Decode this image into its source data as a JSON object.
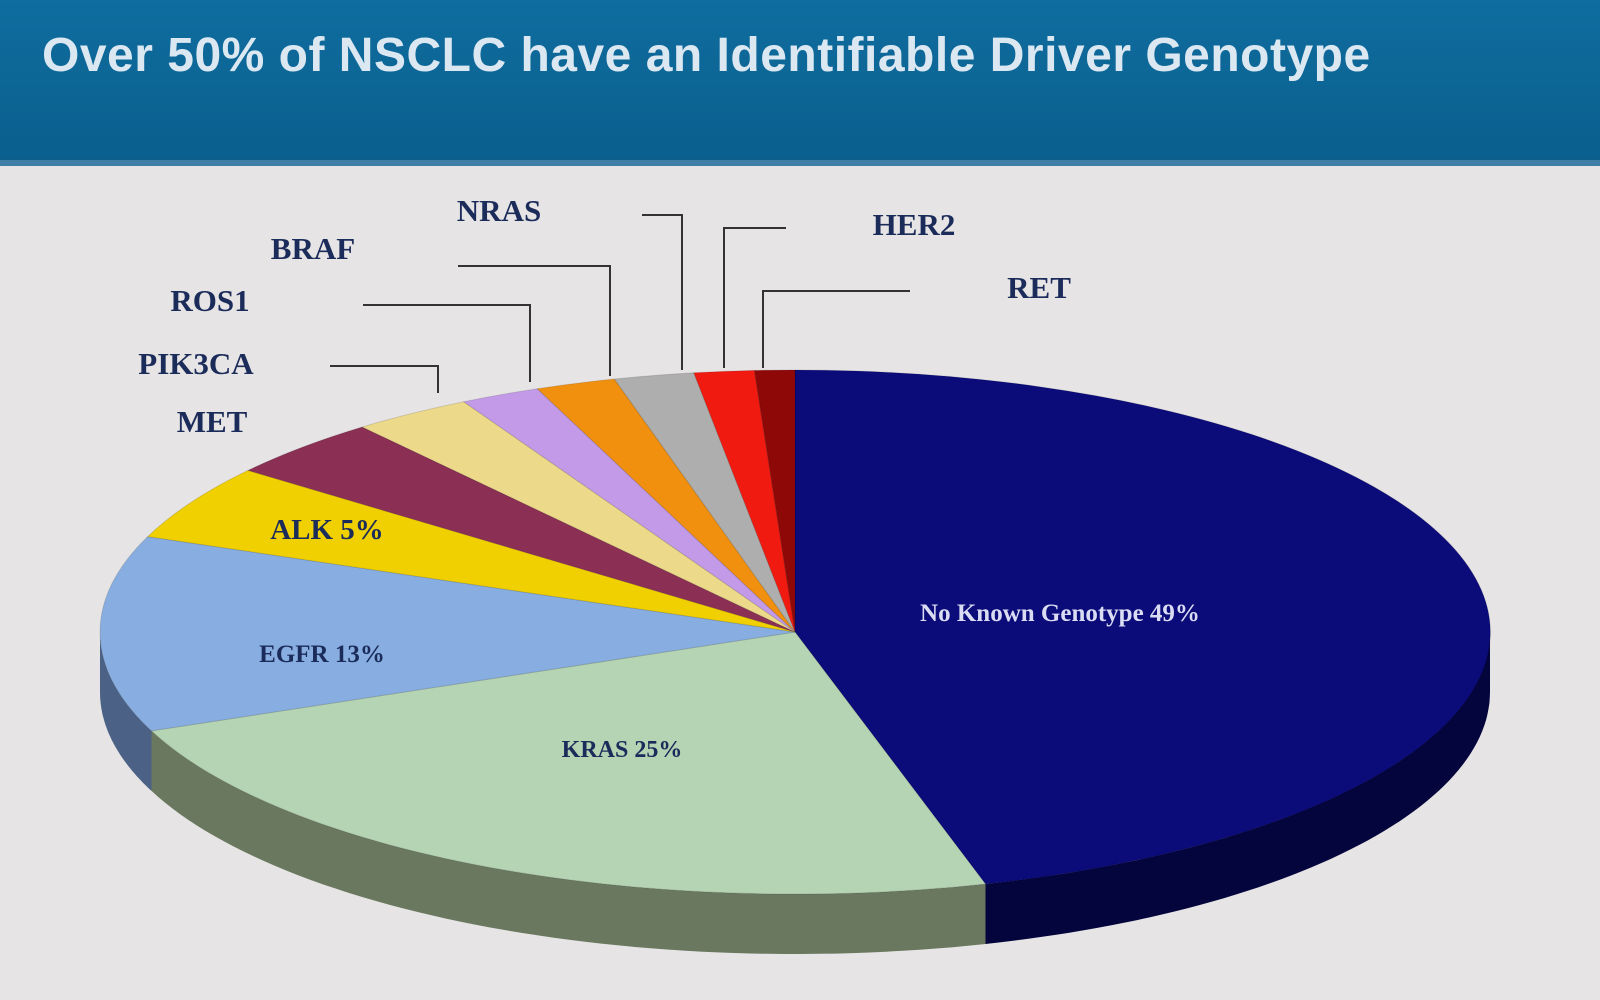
{
  "title": "Over 50% of NSCLC have an Identifiable Driver Genotype",
  "chart_data": {
    "type": "pie",
    "style": "3d",
    "legend": "none",
    "slices": [
      {
        "name": "No Known Genotype",
        "value": 49,
        "label": "No Known  Genotype 49%",
        "color": "#0b0b7a",
        "side_color": "#05053e",
        "label_color": "#d9dcf2"
      },
      {
        "name": "KRAS",
        "value": 25,
        "label": "KRAS 25%",
        "color": "#b5d4b3",
        "side_color": "#69785f",
        "label_color": "#1b2b5a"
      },
      {
        "name": "EGFR",
        "value": 13,
        "label": "EGFR 13%",
        "color": "#88aee1",
        "side_color": "#4b6186",
        "label_color": "#1b2b5a"
      },
      {
        "name": "ALK",
        "value": 5,
        "label": "ALK 5%",
        "color": "#f0d000",
        "side_color": "#8a7700",
        "label_color": "#1b2b5a"
      },
      {
        "name": "MET",
        "value": 4,
        "label": "MET",
        "color": "#8c2f55",
        "side_color": "#4e1a30",
        "label_color": "#1b2b5a"
      },
      {
        "name": "PIK3CA",
        "value": 3,
        "label": "PIK3CA",
        "color": "#ecd98a",
        "side_color": "#857a4c",
        "label_color": "#1b2b5a"
      },
      {
        "name": "ROS1",
        "value": 2,
        "label": "ROS1",
        "color": "#c29ae8",
        "side_color": "#6e5784",
        "label_color": "#1b2b5a"
      },
      {
        "name": "BRAF",
        "value": 2,
        "label": "BRAF",
        "color": "#f0900e",
        "side_color": "#874f07",
        "label_color": "#1b2b5a"
      },
      {
        "name": "NRAS",
        "value": 2,
        "label": "NRAS",
        "color": "#aeaeae",
        "side_color": "#626262",
        "label_color": "#1b2b5a"
      },
      {
        "name": "HER2",
        "value": 1.5,
        "label": "HER2",
        "color": "#f01a10",
        "side_color": "#870e08",
        "label_color": "#1b2b5a"
      },
      {
        "name": "RET",
        "value": 1,
        "label": "RET",
        "color": "#8e0808",
        "side_color": "#500404",
        "label_color": "#1b2b5a"
      }
    ]
  }
}
